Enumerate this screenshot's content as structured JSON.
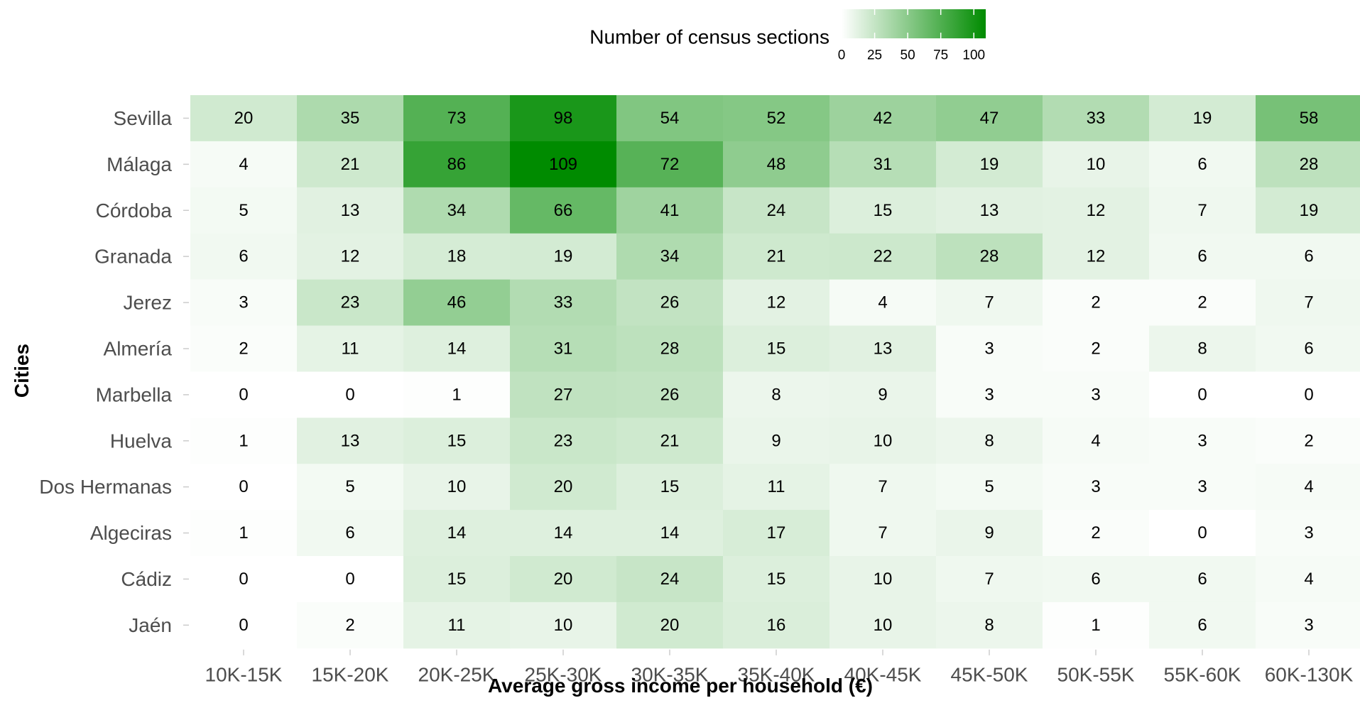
{
  "chart_data": {
    "type": "heatmap",
    "xlabel": "Average gross income per household (€)",
    "ylabel": "Cities",
    "x_categories": [
      "10K-15K",
      "15K-20K",
      "20K-25K",
      "25K-30K",
      "30K-35K",
      "35K-40K",
      "40K-45K",
      "45K-50K",
      "50K-55K",
      "55K-60K",
      "60K-130K"
    ],
    "y_categories": [
      "Sevilla",
      "Málaga",
      "Córdoba",
      "Granada",
      "Jerez",
      "Almería",
      "Marbella",
      "Huelva",
      "Dos Hermanas",
      "Algeciras",
      "Cádiz",
      "Jaén"
    ],
    "values": [
      [
        20,
        35,
        73,
        98,
        54,
        52,
        42,
        47,
        33,
        19,
        58
      ],
      [
        4,
        21,
        86,
        109,
        72,
        48,
        31,
        19,
        10,
        6,
        28
      ],
      [
        5,
        13,
        34,
        66,
        41,
        24,
        15,
        13,
        12,
        7,
        19
      ],
      [
        6,
        12,
        18,
        19,
        34,
        21,
        22,
        28,
        12,
        6,
        6
      ],
      [
        3,
        23,
        46,
        33,
        26,
        12,
        4,
        7,
        2,
        2,
        7
      ],
      [
        2,
        11,
        14,
        31,
        28,
        15,
        13,
        3,
        2,
        8,
        6
      ],
      [
        0,
        0,
        1,
        27,
        26,
        8,
        9,
        3,
        3,
        0,
        0
      ],
      [
        1,
        13,
        15,
        23,
        21,
        9,
        10,
        8,
        4,
        3,
        2
      ],
      [
        0,
        5,
        10,
        20,
        15,
        11,
        7,
        5,
        3,
        3,
        4
      ],
      [
        1,
        6,
        14,
        14,
        14,
        17,
        7,
        9,
        2,
        0,
        3
      ],
      [
        0,
        0,
        15,
        20,
        24,
        15,
        10,
        7,
        6,
        6,
        4
      ],
      [
        0,
        2,
        11,
        10,
        20,
        16,
        10,
        8,
        1,
        6,
        3
      ]
    ],
    "legend": {
      "title": "Number of census sections",
      "ticks": [
        0,
        25,
        50,
        75,
        100
      ],
      "range": [
        0,
        109
      ],
      "placement": "top",
      "color_low": "#ffffff",
      "color_high": "#008b00"
    },
    "grid": false
  }
}
